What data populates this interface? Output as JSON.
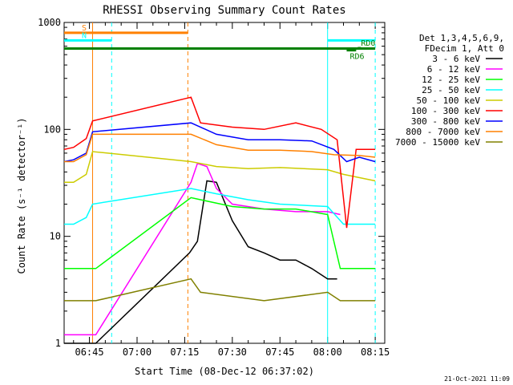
{
  "chart_data": {
    "type": "line",
    "title": "RHESSI Observing Summary Count Rates",
    "xlabel": "Start Time (08-Dec-12 06:37:02)",
    "ylabel": "Count Rate (s⁻¹ detector⁻¹)",
    "x_start": "06:37:02",
    "x_end": "08:18:00",
    "x_ticks": [
      "06:45",
      "07:00",
      "07:15",
      "07:30",
      "07:45",
      "08:00",
      "08:15"
    ],
    "y_scale": "log",
    "ylim": [
      1,
      1000
    ],
    "y_ticks": [
      "1",
      "10",
      "100",
      "1000"
    ],
    "legend_header": [
      "Det 1,3,4,5,6,9,",
      "FDecim 1, Att 0"
    ],
    "legend_position": "right",
    "series": [
      {
        "name": "3 - 6 keV",
        "color": "#000000",
        "points": [
          [
            "06:37:02",
            1
          ],
          [
            "06:47:00",
            1
          ],
          [
            "07:16:30",
            7
          ],
          [
            "07:19:00",
            9
          ],
          [
            "07:22:00",
            33
          ],
          [
            "07:25:00",
            32
          ],
          [
            "07:30:00",
            14
          ],
          [
            "07:35:00",
            8
          ],
          [
            "07:40:00",
            7
          ],
          [
            "07:45:00",
            6
          ],
          [
            "07:50:00",
            6
          ],
          [
            "07:55:00",
            5
          ],
          [
            "08:00:00",
            4
          ],
          [
            "08:03:00",
            4
          ]
        ]
      },
      {
        "name": "6 - 12 keV",
        "color": "#ff00ff",
        "points": [
          [
            "06:37:02",
            1.2
          ],
          [
            "06:47:00",
            1.2
          ],
          [
            "07:17:00",
            32
          ],
          [
            "07:19:00",
            48
          ],
          [
            "07:22:00",
            45
          ],
          [
            "07:25:00",
            28
          ],
          [
            "07:30:00",
            20
          ],
          [
            "07:40:00",
            18
          ],
          [
            "07:50:00",
            17
          ],
          [
            "08:00:00",
            17
          ],
          [
            "08:04:00",
            16
          ]
        ]
      },
      {
        "name": "12 - 25 keV",
        "color": "#00ff00",
        "points": [
          [
            "06:37:02",
            5
          ],
          [
            "06:47:00",
            5
          ],
          [
            "07:17:00",
            23
          ],
          [
            "07:20:00",
            22
          ],
          [
            "07:30:00",
            19
          ],
          [
            "07:40:00",
            18
          ],
          [
            "07:50:00",
            18
          ],
          [
            "08:00:00",
            16
          ],
          [
            "08:04:00",
            5
          ],
          [
            "08:15:00",
            5
          ]
        ]
      },
      {
        "name": "25 - 50 keV",
        "color": "#00ffff",
        "points": [
          [
            "06:37:02",
            13
          ],
          [
            "06:40:00",
            13
          ],
          [
            "06:44:00",
            15
          ],
          [
            "06:46:00",
            20
          ],
          [
            "07:17:00",
            28
          ],
          [
            "07:25:00",
            25
          ],
          [
            "07:35:00",
            22
          ],
          [
            "07:45:00",
            20
          ],
          [
            "08:00:00",
            19
          ],
          [
            "08:05:00",
            13
          ],
          [
            "08:15:00",
            13
          ]
        ]
      },
      {
        "name": "50 - 100 keV",
        "color": "#cccc00",
        "points": [
          [
            "06:37:02",
            32
          ],
          [
            "06:40:00",
            32
          ],
          [
            "06:44:00",
            38
          ],
          [
            "06:46:00",
            62
          ],
          [
            "07:17:00",
            50
          ],
          [
            "07:25:00",
            45
          ],
          [
            "07:35:00",
            43
          ],
          [
            "07:45:00",
            44
          ],
          [
            "08:00:00",
            42
          ],
          [
            "08:05:00",
            38
          ],
          [
            "08:15:00",
            33
          ]
        ]
      },
      {
        "name": "100 - 300 keV",
        "color": "#ff0000",
        "points": [
          [
            "06:37:02",
            65
          ],
          [
            "06:40:00",
            68
          ],
          [
            "06:44:00",
            82
          ],
          [
            "06:46:00",
            120
          ],
          [
            "07:17:00",
            200
          ],
          [
            "07:20:00",
            115
          ],
          [
            "07:30:00",
            105
          ],
          [
            "07:40:00",
            100
          ],
          [
            "07:50:00",
            115
          ],
          [
            "07:58:00",
            100
          ],
          [
            "08:03:00",
            80
          ],
          [
            "08:06:00",
            12
          ],
          [
            "08:09:00",
            65
          ],
          [
            "08:15:00",
            65
          ]
        ]
      },
      {
        "name": "300 - 800 keV",
        "color": "#0000ff",
        "points": [
          [
            "06:37:02",
            50
          ],
          [
            "06:40:00",
            52
          ],
          [
            "06:44:00",
            60
          ],
          [
            "06:46:00",
            95
          ],
          [
            "07:17:00",
            115
          ],
          [
            "07:25:00",
            90
          ],
          [
            "07:35:00",
            80
          ],
          [
            "07:45:00",
            80
          ],
          [
            "07:55:00",
            78
          ],
          [
            "08:02:00",
            65
          ],
          [
            "08:06:00",
            50
          ],
          [
            "08:10:00",
            55
          ],
          [
            "08:15:00",
            50
          ]
        ]
      },
      {
        "name": "800 - 7000 keV",
        "color": "#ff8000",
        "points": [
          [
            "06:37:02",
            50
          ],
          [
            "06:40:00",
            50
          ],
          [
            "06:44:00",
            58
          ],
          [
            "06:46:00",
            90
          ],
          [
            "07:17:00",
            90
          ],
          [
            "07:25:00",
            72
          ],
          [
            "07:35:00",
            64
          ],
          [
            "07:45:00",
            64
          ],
          [
            "07:55:00",
            62
          ],
          [
            "08:02:00",
            58
          ],
          [
            "08:10:00",
            57
          ],
          [
            "08:15:00",
            55
          ]
        ]
      },
      {
        "name": "7000 - 15000 keV",
        "color": "#808000",
        "points": [
          [
            "06:37:02",
            2.5
          ],
          [
            "06:47:00",
            2.5
          ],
          [
            "07:17:00",
            4
          ],
          [
            "07:20:00",
            3
          ],
          [
            "07:40:00",
            2.5
          ],
          [
            "08:00:00",
            3
          ],
          [
            "08:04:00",
            2.5
          ],
          [
            "08:15:00",
            2.5
          ]
        ]
      }
    ],
    "bars": [
      {
        "label": "S",
        "color": "#ff8000",
        "x_start": "06:37:02",
        "x_end": "07:16:00",
        "y": 800
      },
      {
        "label": "N",
        "color": "#00ffff",
        "x_start": "06:37:02",
        "x_end": "06:52:00",
        "y": 680
      },
      {
        "label": "",
        "color": "#00ffff",
        "x_start": "08:00:00",
        "x_end": "08:15:00",
        "y": 680
      },
      {
        "label": "",
        "color": "#008000",
        "x_start": "06:37:02",
        "x_end": "08:15:00",
        "y": 570
      },
      {
        "label": "RD6",
        "color": "#008000",
        "x_start": "08:06:00",
        "x_end": "08:09:00",
        "y": 550
      },
      {
        "label": "RD0",
        "color": "#008000",
        "x_start": "08:09:30",
        "x_end": "08:10:30",
        "y": 575
      }
    ],
    "vlines": [
      {
        "x": "06:46:00",
        "color": "#ff8000",
        "style": "solid"
      },
      {
        "x": "06:52:00",
        "color": "#00ffff",
        "style": "dashed"
      },
      {
        "x": "07:16:00",
        "color": "#ff8000",
        "style": "dashed"
      },
      {
        "x": "08:00:00",
        "color": "#00ffff",
        "style": "solid"
      },
      {
        "x": "08:15:00",
        "color": "#00ffff",
        "style": "dashed"
      }
    ],
    "grid": false
  },
  "footer": "21-Oct-2021 11:09"
}
